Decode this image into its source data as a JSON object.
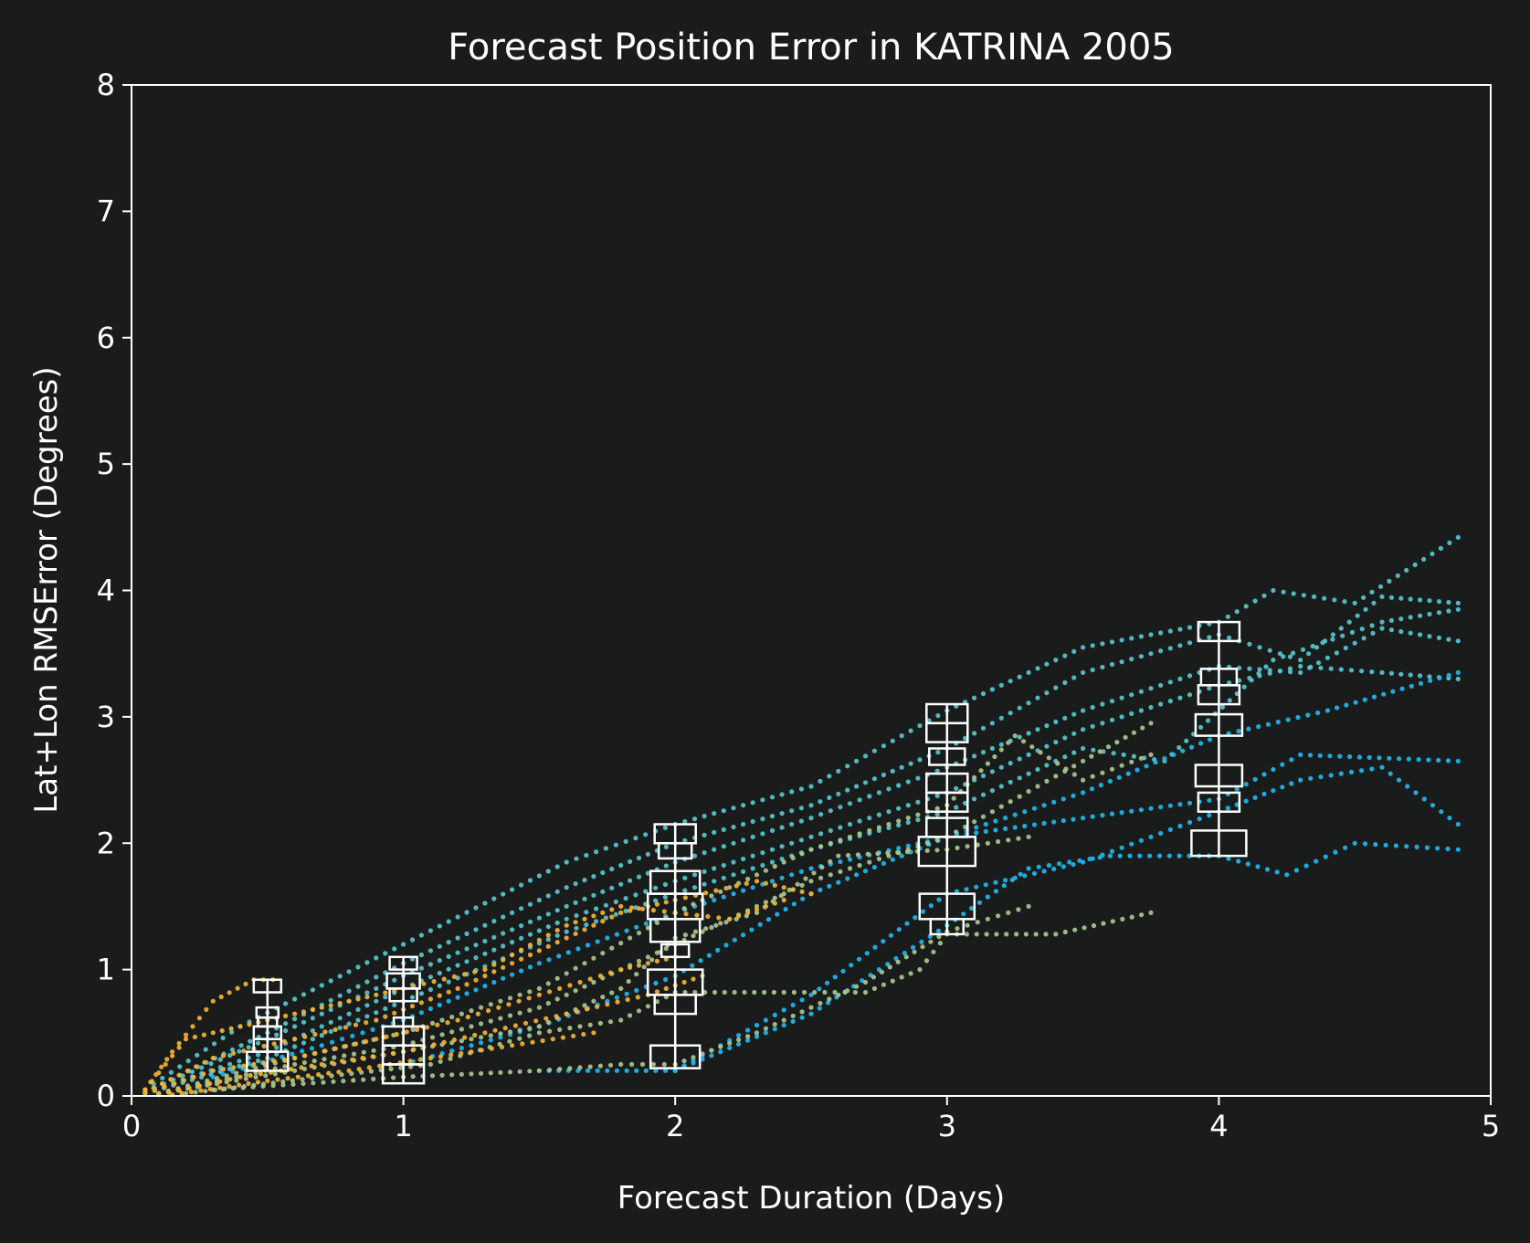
{
  "chart_data": {
    "type": "scatter",
    "title": "Forecast Position Error in KATRINA 2005",
    "xlabel": "Forecast Duration (Days)",
    "ylabel": "Lat+Lon RMSError (Degrees)",
    "xlim": [
      0,
      5
    ],
    "ylim": [
      0,
      8
    ],
    "xticks": [
      "0",
      "1",
      "2",
      "3",
      "4",
      "5"
    ],
    "yticks": [
      "0",
      "1",
      "2",
      "3",
      "4",
      "5",
      "6",
      "7",
      "8"
    ],
    "grid": false,
    "legend": "none",
    "colors": {
      "background": "#1a1c1b",
      "axes": "#ffffff",
      "early": "#f2b233",
      "mid": "#a9c68e",
      "late": "#56c6cf",
      "latest": "#1fb6ef",
      "box": "#ffffff"
    },
    "series": [
      {
        "color": "late",
        "x": [
          0.05,
          0.4,
          1.0,
          1.6,
          2.0,
          2.5,
          3.0,
          3.5,
          4.0,
          4.2,
          4.5,
          4.88
        ],
        "y": [
          0.05,
          0.55,
          1.2,
          1.85,
          2.15,
          2.45,
          3.05,
          3.55,
          3.75,
          4.0,
          3.9,
          4.42
        ]
      },
      {
        "color": "late",
        "x": [
          0.05,
          0.5,
          1.0,
          1.6,
          2.0,
          2.5,
          3.0,
          3.5,
          4.0,
          4.3,
          4.6,
          4.88
        ],
        "y": [
          0.03,
          0.5,
          1.05,
          1.65,
          2.0,
          2.3,
          2.75,
          3.35,
          3.65,
          3.45,
          3.95,
          3.9
        ]
      },
      {
        "color": "late",
        "x": [
          0.05,
          0.5,
          1.0,
          1.6,
          2.0,
          2.5,
          3.0,
          3.5,
          4.0,
          4.3,
          4.6,
          4.88
        ],
        "y": [
          0.03,
          0.45,
          0.95,
          1.5,
          1.85,
          2.2,
          2.6,
          3.05,
          3.4,
          3.35,
          3.7,
          3.6
        ]
      },
      {
        "color": "late",
        "x": [
          0.05,
          0.5,
          1.0,
          1.6,
          2.0,
          2.5,
          3.0,
          3.5,
          4.0,
          4.3,
          4.6,
          4.88
        ],
        "y": [
          0.03,
          0.35,
          0.85,
          1.4,
          1.7,
          2.05,
          2.4,
          2.9,
          3.25,
          3.4,
          3.35,
          3.3
        ]
      },
      {
        "color": "late",
        "x": [
          0.05,
          0.5,
          1.0,
          1.6,
          2.0,
          2.5,
          3.0,
          3.5,
          3.8,
          4.2,
          4.6,
          4.88
        ],
        "y": [
          0.02,
          0.3,
          0.75,
          1.3,
          1.6,
          1.95,
          2.25,
          2.75,
          2.65,
          3.45,
          3.75,
          3.85
        ]
      },
      {
        "color": "latest",
        "x": [
          0.3,
          0.7,
          1.0,
          1.5,
          2.0,
          2.5,
          3.0,
          3.5,
          4.0,
          4.4,
          4.88
        ],
        "y": [
          0.15,
          0.4,
          0.6,
          1.05,
          1.45,
          1.8,
          2.05,
          2.4,
          2.85,
          3.05,
          3.35
        ]
      },
      {
        "color": "latest",
        "x": [
          1.0,
          1.5,
          2.0,
          2.5,
          3.0,
          3.5,
          4.0,
          4.3,
          4.88
        ],
        "y": [
          0.25,
          0.55,
          0.95,
          1.6,
          2.05,
          2.2,
          2.35,
          2.7,
          2.65
        ]
      },
      {
        "color": "latest",
        "x": [
          1.5,
          2.0,
          2.5,
          3.0,
          3.5,
          4.0,
          4.3,
          4.6,
          4.88
        ],
        "y": [
          0.2,
          0.2,
          0.8,
          1.6,
          1.85,
          2.25,
          2.5,
          2.6,
          2.15
        ]
      },
      {
        "color": "latest",
        "x": [
          2.0,
          2.5,
          3.0,
          3.3,
          3.6,
          4.0,
          4.25,
          4.5,
          4.88
        ],
        "y": [
          0.2,
          0.65,
          1.35,
          1.8,
          1.9,
          1.9,
          1.75,
          2.0,
          1.95
        ]
      },
      {
        "color": "mid",
        "x": [
          0.1,
          0.6,
          1.0,
          1.5,
          2.0,
          2.5,
          3.0,
          3.25,
          3.5,
          3.75
        ],
        "y": [
          0.02,
          0.3,
          0.5,
          0.85,
          1.45,
          1.95,
          2.3,
          2.85,
          2.5,
          2.7
        ]
      },
      {
        "color": "mid",
        "x": [
          0.1,
          0.6,
          1.0,
          1.5,
          2.0,
          2.5,
          3.0,
          3.5,
          3.75
        ],
        "y": [
          0.02,
          0.25,
          0.4,
          0.7,
          1.2,
          1.7,
          2.05,
          2.65,
          2.95
        ]
      },
      {
        "color": "mid",
        "x": [
          0.1,
          0.6,
          1.0,
          1.5,
          1.8,
          2.0,
          2.3,
          2.6,
          3.0,
          3.3
        ],
        "y": [
          0.02,
          0.2,
          0.35,
          0.55,
          0.85,
          1.25,
          1.45,
          1.9,
          1.95,
          2.05
        ]
      },
      {
        "color": "mid",
        "x": [
          0.2,
          0.7,
          1.1,
          1.5,
          1.8,
          2.0,
          2.4,
          2.7,
          2.9,
          3.0,
          3.4,
          3.75
        ],
        "y": [
          0.02,
          0.15,
          0.25,
          0.5,
          0.6,
          0.82,
          0.82,
          0.82,
          1.0,
          1.28,
          1.28,
          1.45
        ]
      },
      {
        "color": "mid",
        "x": [
          0.3,
          1.0,
          1.5,
          1.8,
          2.0,
          2.3,
          2.7,
          3.0,
          3.3
        ],
        "y": [
          0.05,
          0.15,
          0.2,
          0.25,
          0.25,
          0.5,
          0.9,
          1.3,
          1.5
        ]
      },
      {
        "color": "early",
        "x": [
          0.05,
          0.15,
          0.3,
          0.45,
          0.52
        ],
        "y": [
          0.05,
          0.35,
          0.75,
          0.92,
          0.92
        ]
      },
      {
        "color": "early",
        "x": [
          0.05,
          0.2,
          0.4,
          0.6,
          0.8,
          1.0,
          1.3,
          1.6,
          1.8,
          2.0,
          2.2,
          2.4
        ],
        "y": [
          0.05,
          0.45,
          0.55,
          0.65,
          0.75,
          0.85,
          1.0,
          1.35,
          1.5,
          1.45,
          1.4,
          1.55
        ]
      },
      {
        "color": "early",
        "x": [
          0.05,
          0.3,
          0.6,
          0.9,
          1.2,
          1.5,
          1.8,
          2.0,
          2.3,
          2.5
        ],
        "y": [
          0.03,
          0.3,
          0.45,
          0.6,
          0.85,
          1.15,
          1.45,
          1.55,
          1.7,
          1.6
        ]
      },
      {
        "color": "early",
        "x": [
          0.05,
          0.3,
          0.6,
          0.9,
          1.2,
          1.5,
          1.8,
          2.0
        ],
        "y": [
          0.02,
          0.2,
          0.3,
          0.45,
          0.6,
          0.8,
          1.0,
          1.1
        ]
      },
      {
        "color": "early",
        "x": [
          0.1,
          0.4,
          0.7,
          1.0,
          1.3,
          1.6,
          1.9,
          2.1
        ],
        "y": [
          0.01,
          0.15,
          0.25,
          0.35,
          0.5,
          0.65,
          0.8,
          0.95
        ]
      },
      {
        "color": "early",
        "x": [
          0.15,
          0.5,
          0.8,
          1.1,
          1.4,
          1.7
        ],
        "y": [
          0.01,
          0.12,
          0.2,
          0.3,
          0.4,
          0.5
        ]
      }
    ],
    "boxes": [
      {
        "x": 0.5,
        "segments": [
          [
            0.2,
            0.35
          ],
          [
            0.35,
            0.45
          ],
          [
            0.45,
            0.55
          ],
          [
            0.55,
            0.62
          ],
          [
            0.62,
            0.7
          ],
          [
            0.82,
            0.92
          ]
        ]
      },
      {
        "x": 1.0,
        "segments": [
          [
            0.1,
            0.25
          ],
          [
            0.25,
            0.4
          ],
          [
            0.4,
            0.55
          ],
          [
            0.55,
            0.62
          ],
          [
            0.75,
            0.85
          ],
          [
            0.85,
            0.97
          ],
          [
            1.0,
            1.1
          ]
        ]
      },
      {
        "x": 2.0,
        "segments": [
          [
            0.22,
            0.4
          ],
          [
            0.65,
            0.8
          ],
          [
            0.8,
            1.0
          ],
          [
            1.1,
            1.2
          ],
          [
            1.22,
            1.4
          ],
          [
            1.4,
            1.6
          ],
          [
            1.6,
            1.78
          ],
          [
            1.88,
            2.0
          ],
          [
            2.0,
            2.15
          ]
        ]
      },
      {
        "x": 3.0,
        "segments": [
          [
            1.28,
            1.4
          ],
          [
            1.4,
            1.6
          ],
          [
            1.82,
            2.05
          ],
          [
            2.05,
            2.2
          ],
          [
            2.25,
            2.4
          ],
          [
            2.4,
            2.55
          ],
          [
            2.62,
            2.75
          ],
          [
            2.8,
            2.95
          ],
          [
            2.95,
            3.1
          ]
        ]
      },
      {
        "x": 4.0,
        "segments": [
          [
            1.9,
            2.1
          ],
          [
            2.25,
            2.4
          ],
          [
            2.45,
            2.62
          ],
          [
            2.85,
            3.02
          ],
          [
            3.1,
            3.25
          ],
          [
            3.25,
            3.38
          ],
          [
            3.6,
            3.75
          ]
        ]
      }
    ]
  }
}
